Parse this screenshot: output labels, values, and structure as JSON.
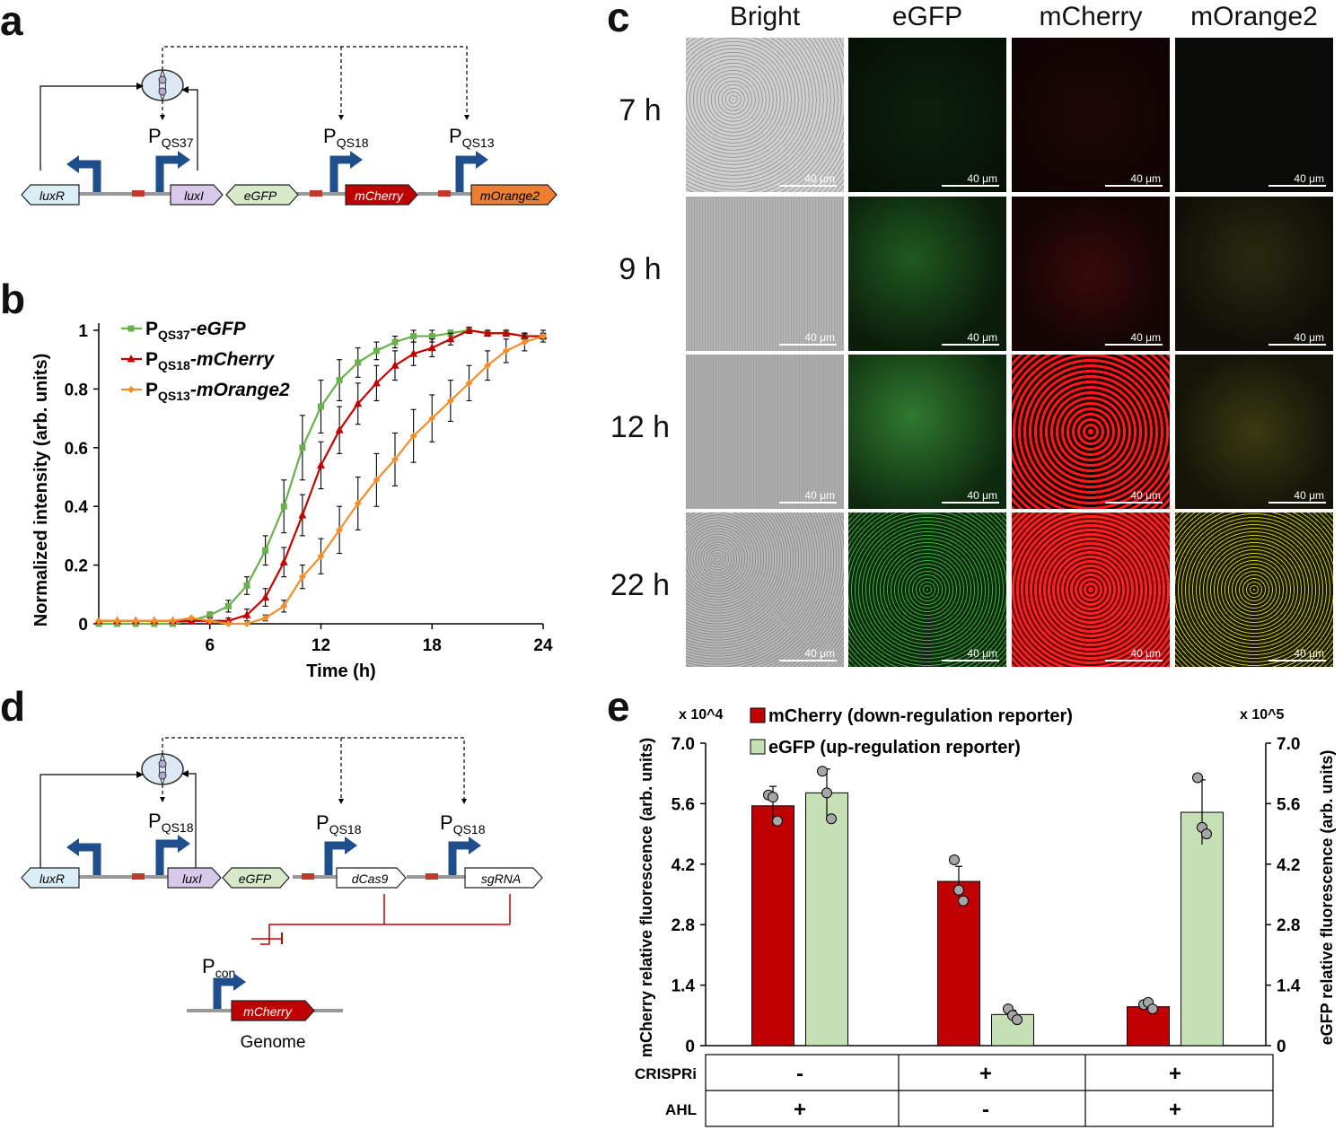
{
  "panels": {
    "a": "a",
    "b": "b",
    "c": "c",
    "d": "d",
    "e": "e"
  },
  "circuit_a": {
    "promoters": [
      {
        "main": "P",
        "sub": "QS37"
      },
      {
        "main": "P",
        "sub": "QS18"
      },
      {
        "main": "P",
        "sub": "QS13"
      }
    ],
    "genes": [
      "luxR",
      "luxI",
      "eGFP",
      "mCherry",
      "mOrange2"
    ]
  },
  "circuit_d": {
    "promoters": [
      {
        "main": "P",
        "sub": "QS18"
      },
      {
        "main": "P",
        "sub": "QS18"
      },
      {
        "main": "P",
        "sub": "QS18"
      }
    ],
    "genes": [
      "luxR",
      "luxI",
      "eGFP",
      "dCas9",
      "sgRNA"
    ],
    "pcon": {
      "main": "P",
      "sub": "con"
    },
    "genome_gene": "mCherry",
    "genome_label": "Genome"
  },
  "chart_data": [
    {
      "type": "line",
      "xlabel": "Time (h)",
      "ylabel": "Normalized intensity (arb. units)",
      "xlim": [
        0,
        24
      ],
      "ylim": [
        0,
        1
      ],
      "xticks": [
        "6",
        "12",
        "18",
        "24"
      ],
      "yticks": [
        "0",
        "0.2",
        "0.4",
        "0.6",
        "0.8",
        "1"
      ],
      "x": [
        0,
        1,
        2,
        3,
        4,
        5,
        6,
        7,
        8,
        9,
        10,
        11,
        12,
        13,
        14,
        15,
        16,
        17,
        18,
        19,
        20,
        21,
        22,
        23,
        24
      ],
      "series": [
        {
          "name": "P",
          "sub": "QS37",
          "suffix": "-eGFP",
          "color": "#6ab04c",
          "marker": "square",
          "values": [
            0,
            0,
            0,
            0,
            0,
            0.01,
            0.03,
            0.06,
            0.13,
            0.25,
            0.4,
            0.6,
            0.74,
            0.83,
            0.89,
            0.93,
            0.96,
            0.98,
            0.98,
            0.99,
            1.0,
            0.99,
            0.99,
            0.98,
            0.98
          ],
          "errors": [
            0,
            0,
            0,
            0,
            0,
            0.01,
            0.01,
            0.02,
            0.03,
            0.05,
            0.09,
            0.11,
            0.09,
            0.07,
            0.05,
            0.03,
            0.02,
            0.02,
            0.02,
            0.01,
            0.01,
            0.01,
            0.01,
            0.01,
            0.01
          ]
        },
        {
          "name": "P",
          "sub": "QS18",
          "suffix": "-mCherry",
          "color": "#c00000",
          "marker": "triangle",
          "values": [
            0.01,
            0.01,
            0.01,
            0.01,
            0.01,
            0.01,
            0.01,
            0.01,
            0.03,
            0.09,
            0.21,
            0.37,
            0.54,
            0.66,
            0.75,
            0.82,
            0.88,
            0.92,
            0.94,
            0.97,
            1.0,
            0.99,
            0.99,
            0.98,
            0.98
          ],
          "errors": [
            0,
            0,
            0,
            0,
            0,
            0,
            0.01,
            0.01,
            0.02,
            0.03,
            0.05,
            0.07,
            0.08,
            0.08,
            0.07,
            0.06,
            0.05,
            0.04,
            0.03,
            0.02,
            0.01,
            0.01,
            0.01,
            0.01,
            0.01
          ]
        },
        {
          "name": "P",
          "sub": "QS13",
          "suffix": "-mOrange2",
          "color": "#f28e2b",
          "marker": "diamond",
          "values": [
            0.01,
            0.01,
            0.01,
            0.01,
            0.01,
            0.02,
            0.01,
            0,
            0,
            0.02,
            0.06,
            0.16,
            0.23,
            0.32,
            0.41,
            0.49,
            0.56,
            0.64,
            0.7,
            0.76,
            0.82,
            0.88,
            0.93,
            0.96,
            0.98
          ],
          "errors": [
            0,
            0,
            0,
            0,
            0,
            0,
            0,
            0,
            0,
            0.01,
            0.02,
            0.04,
            0.06,
            0.08,
            0.09,
            0.09,
            0.09,
            0.09,
            0.08,
            0.07,
            0.06,
            0.05,
            0.04,
            0.03,
            0.02
          ]
        }
      ]
    },
    {
      "type": "bar",
      "ylabel": "mCherry relative fluorescence (arb. units)",
      "ylabel_right": "eGFP relative fluorescence (arb. units)",
      "scale_left": "x 10^4",
      "scale_right": "x 10^5",
      "ylim": [
        0,
        7.0
      ],
      "yticks": [
        "0",
        "1.4",
        "2.8",
        "4.2",
        "5.6",
        "7.0"
      ],
      "series": [
        {
          "name": "mCherry (down-regulation reporter)",
          "color": "#c00000",
          "values": [
            5.55,
            3.8,
            0.9
          ],
          "errors": [
            0.45,
            0.35,
            0.1
          ],
          "points": [
            [
              5.8,
              5.75,
              5.2
            ],
            [
              4.3,
              3.6,
              3.35
            ],
            [
              0.95,
              1.0,
              0.85
            ]
          ]
        },
        {
          "name": "eGFP (up-regulation reporter)",
          "color": "#c5e0b4",
          "values": [
            5.85,
            0.72,
            5.4
          ],
          "errors": [
            0.55,
            0.1,
            0.75
          ],
          "points": [
            [
              6.35,
              5.85,
              5.25
            ],
            [
              0.85,
              0.7,
              0.6
            ],
            [
              6.2,
              5.05,
              4.9
            ]
          ]
        }
      ],
      "table": {
        "rows": [
          {
            "label": "CRISPRi",
            "values": [
              "-",
              "+",
              "+"
            ]
          },
          {
            "label": "AHL",
            "values": [
              "+",
              "-",
              "+"
            ]
          }
        ]
      }
    }
  ],
  "microscopy": {
    "columns": [
      "Bright",
      "eGFP",
      "mCherry",
      "mOrange2"
    ],
    "rows": [
      "7 h",
      "9 h",
      "12 h",
      "22 h"
    ],
    "scale_bar": "40 μm"
  }
}
